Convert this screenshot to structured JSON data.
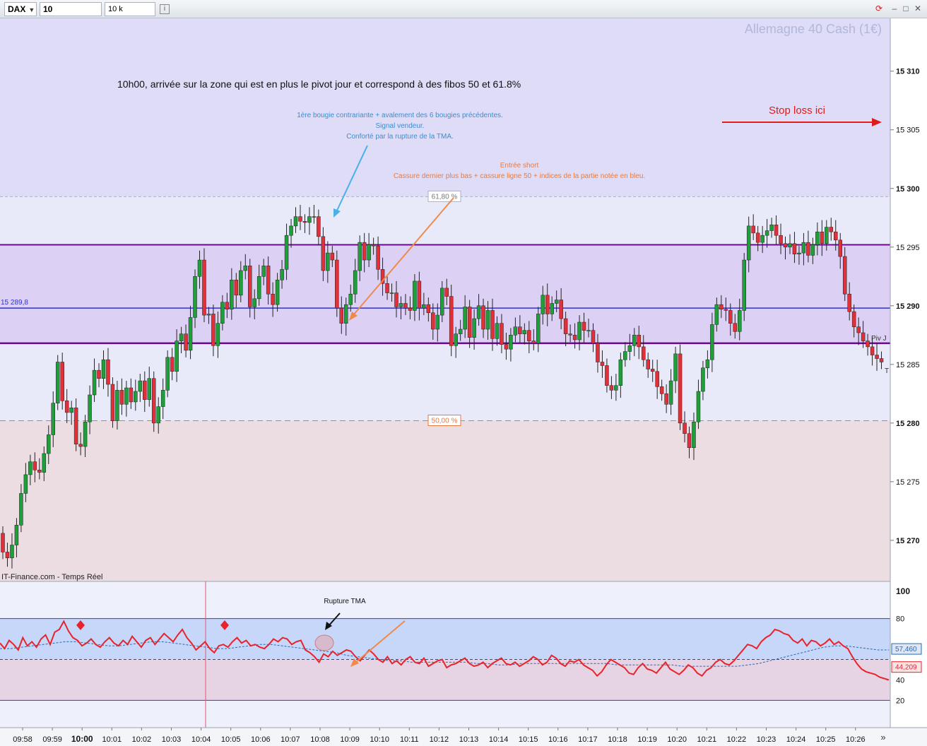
{
  "toolbar": {
    "instrument": "DAX",
    "timeframe": "10 secondes",
    "units": "10 k unités",
    "info_icon": "info-icon",
    "refresh_icon": "refresh-icon",
    "window_icons": [
      "minimize-icon",
      "maximize-icon",
      "close-icon"
    ]
  },
  "main_chart": {
    "title": "Allemagne 40 Cash (1€)",
    "source": "IT-Finance.com - Temps Réel",
    "price_axis_labels": [
      "15 310",
      "15 305",
      "15 300",
      "15 295",
      "15 290",
      "15 285",
      "15 280",
      "15 275",
      "15 270"
    ],
    "levels": {
      "fib_618_label": "61,80 %",
      "fib_50_label": "50,00 %",
      "blue_line_label": "15 289,8",
      "pivot_label": "Piv J",
      "extra_label": "T"
    },
    "annotations": {
      "main_comment": "10h00, arrivée sur la zone qui est en plus le pivot jour et correspond à des fibos 50 et 61.8%",
      "blue_note": [
        "1ère bougie contrariante + avalement des 6 bougies précédentes.",
        "Signal vendeur.",
        "Conforté par la rupture de la TMA."
      ],
      "orange_note": [
        "Entrée short",
        "Cassure dernier plus bas + cassure ligne 50 + indices de la partie notée en bleu."
      ],
      "stop_loss": "Stop loss ici"
    }
  },
  "indicator": {
    "axis_labels": [
      "100",
      "80",
      "20"
    ],
    "value_blue": "57,460",
    "value_red": "44,209",
    "value_partial": "40",
    "annotation": "Rupture TMA"
  },
  "time_axis": {
    "labels": [
      "09:58",
      "09:59",
      "10:00",
      "10:01",
      "10:02",
      "10:03",
      "10:04",
      "10:05",
      "10:06",
      "10:07",
      "10:08",
      "10:09",
      "10:10",
      "10:11",
      "10:12",
      "10:13",
      "10:14",
      "10:15",
      "10:16",
      "10:17",
      "10:18",
      "10:19",
      "10:20",
      "10:21",
      "10:22",
      "10:23",
      "10:24",
      "10:25",
      "10:26"
    ],
    "bold_label": "10:00",
    "scroll_icon": "double-chevron-right-icon"
  },
  "colors": {
    "up_candle": "#1f9e3a",
    "down_candle": "#e0303a",
    "rsi_line": "#e8232b",
    "tma_line": "#2a6bb0",
    "fib_orange": "#e8773a",
    "pivot_purple": "#6a0a8a",
    "blue_line": "#3232c8",
    "note_blue": "#3a8fd0",
    "note_orange": "#ee7a3a",
    "stop_red": "#e01b1b"
  },
  "chart_data": {
    "type": "candlestick",
    "instrument": "Allemagne 40 Cash (1€)",
    "timeframe": "10 secondes",
    "y_range": [
      15266.5,
      15314.5
    ],
    "levels": {
      "fib_61_8": 15299.3,
      "fib_50": 15280.2,
      "pivot_high": 15295.2,
      "blue_line": 15289.8,
      "pivot_day": 15286.8
    },
    "times": [
      "09:58",
      "09:59",
      "10:00",
      "10:01",
      "10:02",
      "10:03",
      "10:04",
      "10:05",
      "10:06",
      "10:07",
      "10:08",
      "10:09",
      "10:10",
      "10:11",
      "10:12",
      "10:13",
      "10:14",
      "10:15",
      "10:16",
      "10:17",
      "10:18",
      "10:19",
      "10:20",
      "10:21",
      "10:22",
      "10:23",
      "10:24",
      "10:25",
      "10:26"
    ],
    "closes": [
      15269.0,
      15268.5,
      15269.6,
      15271.3,
      15274.0,
      15275.6,
      15276.7,
      15276.0,
      15275.8,
      15277.4,
      15279.0,
      15281.7,
      15285.2,
      15281.9,
      15280.9,
      15281.3,
      15278.2,
      15278.0,
      15280.1,
      15282.4,
      15284.5,
      15283.8,
      15285.4,
      15283.3,
      15280.2,
      15282.8,
      15281.6,
      15283.0,
      15281.8,
      15282.7,
      15283.6,
      15282.0,
      15283.8,
      15280.0,
      15281.4,
      15282.8,
      15285.6,
      15284.4,
      15287.0,
      15287.6,
      15286.2,
      15289.0,
      15292.5,
      15293.9,
      15289.2,
      15289.3,
      15286.6,
      15288.5,
      15290.3,
      15289.7,
      15292.2,
      15290.9,
      15293.0,
      15293.4,
      15289.9,
      15290.6,
      15292.5,
      15293.4,
      15291.0,
      15290.1,
      15292.2,
      15293.1,
      15296.0,
      15296.8,
      15297.6,
      15297.2,
      15297.1,
      15297.6,
      15297.6,
      15295.9,
      15293.0,
      15294.5,
      15293.9,
      15289.8,
      15288.5,
      15290.1,
      15291.0,
      15293.0,
      15295.4,
      15293.9,
      15295.2,
      15295.1,
      15293.1,
      15291.9,
      15291.1,
      15291.1,
      15289.9,
      15290.2,
      15289.8,
      15289.6,
      15292.1,
      15289.8,
      15290.1,
      15289.4,
      15288.0,
      15289.2,
      15291.5,
      15290.8,
      15286.6,
      15287.6,
      15288.0,
      15289.9,
      15287.3,
      15288.9,
      15290.0,
      15288.0,
      15289.6,
      15287.2,
      15288.5,
      15286.7,
      15286.3,
      15287.5,
      15288.2,
      15287.6,
      15287.9,
      15287.0,
      15286.8,
      15289.3,
      15290.9,
      15289.3,
      15290.2,
      15290.5,
      15288.9,
      15287.6,
      15287.5,
      15287.1,
      15288.6,
      15287.9,
      15287.9,
      15286.8,
      15285.2,
      15284.9,
      15283.2,
      15282.8,
      15283.2,
      15285.4,
      15286.1,
      15286.6,
      15287.5,
      15286.5,
      15285.4,
      15284.6,
      15284.4,
      15283.1,
      15282.5,
      15281.6,
      15283.6,
      15285.9,
      15280.0,
      15279.1,
      15277.9,
      15280.1,
      15282.7,
      15284.7,
      15285.4,
      15288.4,
      15290.1,
      15289.7,
      15289.6,
      15288.5,
      15287.8,
      15289.6,
      15293.9,
      15296.8,
      15296.2,
      15295.4,
      15296.0,
      15296.4,
      15296.9,
      15296.0,
      15295.3,
      15295.0,
      15295.3,
      15294.4,
      15294.5,
      15295.4,
      15294.3,
      15295.2,
      15296.3,
      15295.3,
      15296.7,
      15296.3,
      15295.6,
      15294.2,
      15291.0,
      15289.5,
      15288.2,
      15287.7,
      15287.0,
      15286.5,
      15285.8,
      15285.5,
      15285.2
    ],
    "rsi": {
      "levels": {
        "upper": 80,
        "middle": 50,
        "lower": 20
      },
      "current": 44.209,
      "tma_current": 57.46,
      "values": [
        62,
        58,
        64,
        61,
        57,
        66,
        60,
        63,
        59,
        65,
        68,
        61,
        70,
        72,
        78,
        71,
        66,
        64,
        60,
        62,
        65,
        61,
        59,
        63,
        66,
        62,
        60,
        64,
        61,
        67,
        63,
        59,
        64,
        66,
        61,
        65,
        69,
        66,
        63,
        68,
        72,
        66,
        62,
        57,
        60,
        63,
        58,
        55,
        60,
        61,
        59,
        63,
        66,
        62,
        64,
        60,
        61,
        59,
        58,
        61,
        65,
        63,
        66,
        65,
        61,
        63,
        64,
        57,
        55,
        52,
        48,
        54,
        52,
        56,
        53,
        55,
        57,
        56,
        52,
        49,
        53,
        57,
        54,
        50,
        48,
        52,
        47,
        49,
        46,
        50,
        52,
        48,
        47,
        51,
        45,
        47,
        49,
        50,
        44,
        46,
        47,
        49,
        51,
        47,
        45,
        46,
        48,
        44,
        47,
        49,
        51,
        47,
        46,
        48,
        45,
        47,
        49,
        52,
        50,
        46,
        48,
        53,
        51,
        47,
        45,
        49,
        48,
        50,
        46,
        44,
        42,
        38,
        41,
        46,
        50,
        48,
        46,
        44,
        40,
        39,
        44,
        47,
        43,
        42,
        40,
        44,
        48,
        43,
        41,
        39,
        42,
        46,
        44,
        40,
        38,
        42,
        44,
        48,
        50,
        47,
        46,
        49,
        53,
        57,
        61,
        60,
        58,
        63,
        66,
        68,
        72,
        71,
        69,
        68,
        64,
        62,
        65,
        60,
        64,
        63,
        60,
        62,
        65,
        61,
        63,
        60,
        58,
        52,
        47,
        43,
        41,
        40,
        39,
        37,
        36,
        35
      ],
      "tma": [
        58,
        58,
        59,
        60,
        61,
        62,
        63,
        63,
        62,
        61,
        60,
        60,
        61,
        62,
        63,
        63,
        62,
        61,
        60,
        59,
        58,
        58,
        59,
        60,
        61,
        61,
        60,
        59,
        58,
        57,
        56,
        55,
        53,
        52,
        51,
        50,
        49,
        49,
        48,
        48,
        48,
        48,
        48,
        48,
        47,
        47,
        46,
        46,
        47,
        47,
        47,
        47,
        47,
        47,
        47,
        47,
        47,
        46,
        46,
        46,
        46,
        46,
        46,
        45,
        45,
        45,
        45,
        45,
        45,
        46,
        47,
        49,
        51,
        53,
        55,
        57,
        59,
        60,
        60,
        59,
        58,
        57,
        57
      ]
    }
  }
}
